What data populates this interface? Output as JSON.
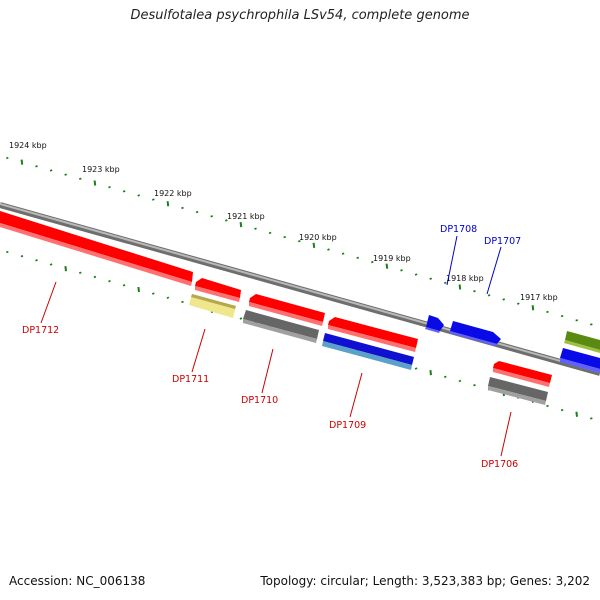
{
  "title": "Desulfotalea psychrophila LSv54, complete genome",
  "accession": "Accession: NC_006138",
  "topology": "Topology: circular; Length: 3,523,383 bp; Genes: 3,202",
  "colors": {
    "backbone": "#8a8a8a",
    "tick": "#1a7f1a",
    "forward_label": "#0000cc",
    "reverse_label": "#cc0000"
  },
  "kbp_labels": [
    {
      "text": "1924 kbp",
      "pos": 1924
    },
    {
      "text": "1923 kbp",
      "pos": 1923
    },
    {
      "text": "1922 kbp",
      "pos": 1922
    },
    {
      "text": "1921 kbp",
      "pos": 1921
    },
    {
      "text": "1920 kbp",
      "pos": 1920
    },
    {
      "text": "1919 kbp",
      "pos": 1919
    },
    {
      "text": "1918 kbp",
      "pos": 1918
    },
    {
      "text": "1917 kbp",
      "pos": 1917
    }
  ],
  "gene_labels": [
    {
      "text": "DP1712",
      "strand": "reverse"
    },
    {
      "text": "DP1711",
      "strand": "reverse"
    },
    {
      "text": "DP1710",
      "strand": "reverse"
    },
    {
      "text": "DP1709",
      "strand": "reverse"
    },
    {
      "text": "DP1708",
      "strand": "forward"
    },
    {
      "text": "DP1707",
      "strand": "forward"
    },
    {
      "text": "DP1706",
      "strand": "reverse"
    }
  ]
}
